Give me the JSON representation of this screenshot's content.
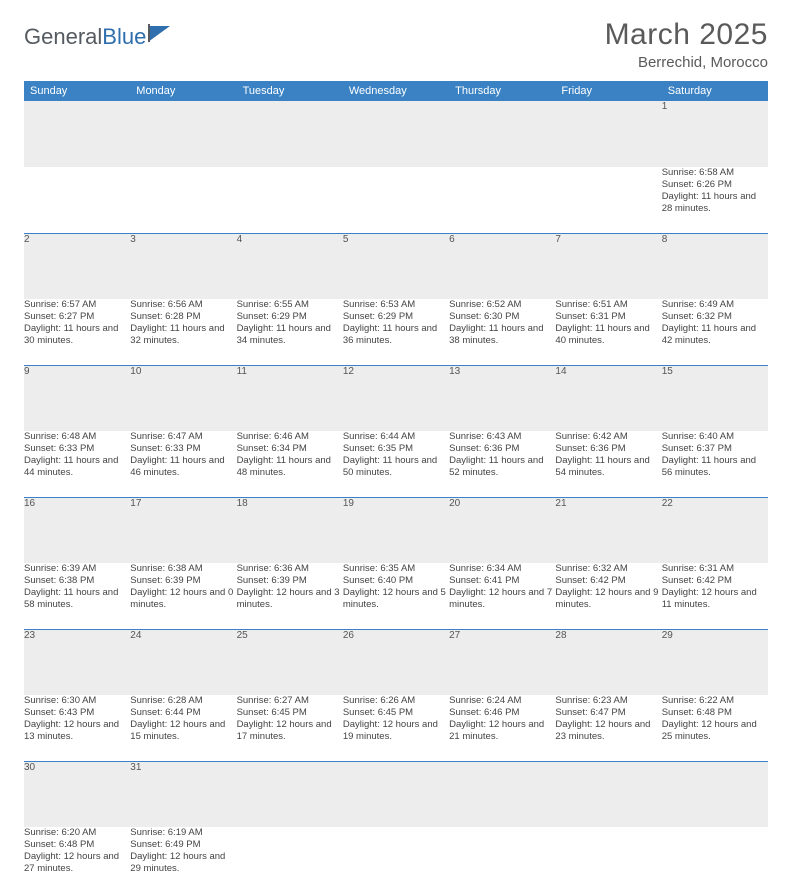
{
  "logo": {
    "part1": "General",
    "part2": "Blue"
  },
  "title": "March 2025",
  "location": "Berrechid, Morocco",
  "colors": {
    "header_bg": "#3a82c4",
    "header_text": "#ffffff",
    "daynum_bg": "#ededed",
    "border": "#3a82c4",
    "text": "#444444",
    "logo_gray": "#555b60",
    "logo_blue": "#2f6fad"
  },
  "weekdays": [
    "Sunday",
    "Monday",
    "Tuesday",
    "Wednesday",
    "Thursday",
    "Friday",
    "Saturday"
  ],
  "weeks": [
    [
      null,
      null,
      null,
      null,
      null,
      null,
      {
        "n": "1",
        "sr": "Sunrise: 6:58 AM",
        "ss": "Sunset: 6:26 PM",
        "dl": "Daylight: 11 hours and 28 minutes."
      }
    ],
    [
      {
        "n": "2",
        "sr": "Sunrise: 6:57 AM",
        "ss": "Sunset: 6:27 PM",
        "dl": "Daylight: 11 hours and 30 minutes."
      },
      {
        "n": "3",
        "sr": "Sunrise: 6:56 AM",
        "ss": "Sunset: 6:28 PM",
        "dl": "Daylight: 11 hours and 32 minutes."
      },
      {
        "n": "4",
        "sr": "Sunrise: 6:55 AM",
        "ss": "Sunset: 6:29 PM",
        "dl": "Daylight: 11 hours and 34 minutes."
      },
      {
        "n": "5",
        "sr": "Sunrise: 6:53 AM",
        "ss": "Sunset: 6:29 PM",
        "dl": "Daylight: 11 hours and 36 minutes."
      },
      {
        "n": "6",
        "sr": "Sunrise: 6:52 AM",
        "ss": "Sunset: 6:30 PM",
        "dl": "Daylight: 11 hours and 38 minutes."
      },
      {
        "n": "7",
        "sr": "Sunrise: 6:51 AM",
        "ss": "Sunset: 6:31 PM",
        "dl": "Daylight: 11 hours and 40 minutes."
      },
      {
        "n": "8",
        "sr": "Sunrise: 6:49 AM",
        "ss": "Sunset: 6:32 PM",
        "dl": "Daylight: 11 hours and 42 minutes."
      }
    ],
    [
      {
        "n": "9",
        "sr": "Sunrise: 6:48 AM",
        "ss": "Sunset: 6:33 PM",
        "dl": "Daylight: 11 hours and 44 minutes."
      },
      {
        "n": "10",
        "sr": "Sunrise: 6:47 AM",
        "ss": "Sunset: 6:33 PM",
        "dl": "Daylight: 11 hours and 46 minutes."
      },
      {
        "n": "11",
        "sr": "Sunrise: 6:46 AM",
        "ss": "Sunset: 6:34 PM",
        "dl": "Daylight: 11 hours and 48 minutes."
      },
      {
        "n": "12",
        "sr": "Sunrise: 6:44 AM",
        "ss": "Sunset: 6:35 PM",
        "dl": "Daylight: 11 hours and 50 minutes."
      },
      {
        "n": "13",
        "sr": "Sunrise: 6:43 AM",
        "ss": "Sunset: 6:36 PM",
        "dl": "Daylight: 11 hours and 52 minutes."
      },
      {
        "n": "14",
        "sr": "Sunrise: 6:42 AM",
        "ss": "Sunset: 6:36 PM",
        "dl": "Daylight: 11 hours and 54 minutes."
      },
      {
        "n": "15",
        "sr": "Sunrise: 6:40 AM",
        "ss": "Sunset: 6:37 PM",
        "dl": "Daylight: 11 hours and 56 minutes."
      }
    ],
    [
      {
        "n": "16",
        "sr": "Sunrise: 6:39 AM",
        "ss": "Sunset: 6:38 PM",
        "dl": "Daylight: 11 hours and 58 minutes."
      },
      {
        "n": "17",
        "sr": "Sunrise: 6:38 AM",
        "ss": "Sunset: 6:39 PM",
        "dl": "Daylight: 12 hours and 0 minutes."
      },
      {
        "n": "18",
        "sr": "Sunrise: 6:36 AM",
        "ss": "Sunset: 6:39 PM",
        "dl": "Daylight: 12 hours and 3 minutes."
      },
      {
        "n": "19",
        "sr": "Sunrise: 6:35 AM",
        "ss": "Sunset: 6:40 PM",
        "dl": "Daylight: 12 hours and 5 minutes."
      },
      {
        "n": "20",
        "sr": "Sunrise: 6:34 AM",
        "ss": "Sunset: 6:41 PM",
        "dl": "Daylight: 12 hours and 7 minutes."
      },
      {
        "n": "21",
        "sr": "Sunrise: 6:32 AM",
        "ss": "Sunset: 6:42 PM",
        "dl": "Daylight: 12 hours and 9 minutes."
      },
      {
        "n": "22",
        "sr": "Sunrise: 6:31 AM",
        "ss": "Sunset: 6:42 PM",
        "dl": "Daylight: 12 hours and 11 minutes."
      }
    ],
    [
      {
        "n": "23",
        "sr": "Sunrise: 6:30 AM",
        "ss": "Sunset: 6:43 PM",
        "dl": "Daylight: 12 hours and 13 minutes."
      },
      {
        "n": "24",
        "sr": "Sunrise: 6:28 AM",
        "ss": "Sunset: 6:44 PM",
        "dl": "Daylight: 12 hours and 15 minutes."
      },
      {
        "n": "25",
        "sr": "Sunrise: 6:27 AM",
        "ss": "Sunset: 6:45 PM",
        "dl": "Daylight: 12 hours and 17 minutes."
      },
      {
        "n": "26",
        "sr": "Sunrise: 6:26 AM",
        "ss": "Sunset: 6:45 PM",
        "dl": "Daylight: 12 hours and 19 minutes."
      },
      {
        "n": "27",
        "sr": "Sunrise: 6:24 AM",
        "ss": "Sunset: 6:46 PM",
        "dl": "Daylight: 12 hours and 21 minutes."
      },
      {
        "n": "28",
        "sr": "Sunrise: 6:23 AM",
        "ss": "Sunset: 6:47 PM",
        "dl": "Daylight: 12 hours and 23 minutes."
      },
      {
        "n": "29",
        "sr": "Sunrise: 6:22 AM",
        "ss": "Sunset: 6:48 PM",
        "dl": "Daylight: 12 hours and 25 minutes."
      }
    ],
    [
      {
        "n": "30",
        "sr": "Sunrise: 6:20 AM",
        "ss": "Sunset: 6:48 PM",
        "dl": "Daylight: 12 hours and 27 minutes."
      },
      {
        "n": "31",
        "sr": "Sunrise: 6:19 AM",
        "ss": "Sunset: 6:49 PM",
        "dl": "Daylight: 12 hours and 29 minutes."
      },
      null,
      null,
      null,
      null,
      null
    ]
  ]
}
